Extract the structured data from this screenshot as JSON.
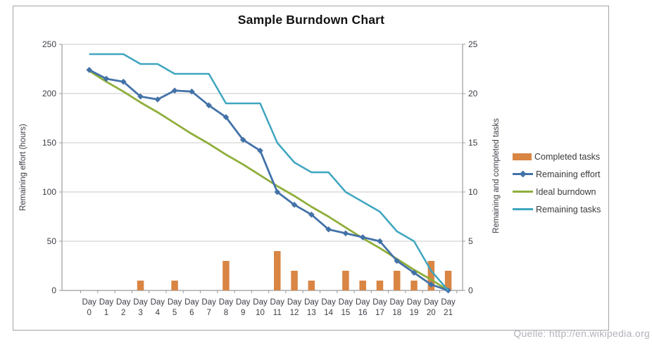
{
  "title": "Sample Burndown Chart",
  "watermark": "Quelle: http://en.wikipedia.org",
  "chart_data": {
    "type": "combo",
    "title": "Sample Burndown Chart",
    "categories": [
      "Day 0",
      "Day 1",
      "Day 2",
      "Day 3",
      "Day 4",
      "Day 5",
      "Day 6",
      "Day 7",
      "Day 8",
      "Day 9",
      "Day 10",
      "Day 11",
      "Day 12",
      "Day 13",
      "Day 14",
      "Day 15",
      "Day 16",
      "Day 17",
      "Day 18",
      "Day 19",
      "Day 20",
      "Day 21"
    ],
    "left_axis": {
      "label": "Remaining effort (hours)",
      "min": 0,
      "max": 250,
      "step": 50,
      "ticks": [
        250,
        200,
        150,
        100,
        50,
        0
      ]
    },
    "right_axis": {
      "label": "Remaining and completed tasks",
      "min": 0,
      "max": 25,
      "step": 5,
      "ticks": [
        25,
        20,
        15,
        10,
        5,
        0
      ]
    },
    "grid": true,
    "legend_position": "right",
    "series": [
      {
        "name": "Completed tasks",
        "type": "bar",
        "axis": "right",
        "color": "#d98544",
        "values": [
          0,
          0,
          0,
          1,
          0,
          1,
          0,
          0,
          3,
          0,
          0,
          4,
          2,
          1,
          0,
          2,
          1,
          1,
          2,
          1,
          3,
          2
        ]
      },
      {
        "name": "Remaining effort",
        "type": "line",
        "marker": "diamond",
        "axis": "left",
        "color": "#4372a8",
        "values": [
          224,
          215,
          212,
          197,
          194,
          203,
          202,
          188,
          176,
          153,
          142,
          100,
          87,
          77,
          62,
          58,
          54,
          50,
          30,
          18,
          6,
          0
        ]
      },
      {
        "name": "Ideal burndown",
        "type": "line",
        "marker": "none",
        "axis": "left",
        "color": "#8fae3b",
        "values": [
          223,
          212,
          202,
          191,
          181,
          170,
          159,
          149,
          138,
          128,
          117,
          106,
          96,
          85,
          75,
          64,
          53,
          43,
          32,
          21,
          11,
          0
        ]
      },
      {
        "name": "Remaining tasks",
        "type": "line",
        "marker": "none",
        "axis": "right",
        "color": "#3fa6bf",
        "values": [
          24,
          24,
          24,
          23,
          23,
          22,
          22,
          22,
          19,
          19,
          19,
          15,
          13,
          12,
          12,
          10,
          9,
          8,
          6,
          5,
          2,
          0
        ]
      }
    ],
    "colors": {
      "gridline": "#c9c9c9",
      "axis_line": "#9b9b9b",
      "frame_border": "#a3a3a3"
    }
  }
}
